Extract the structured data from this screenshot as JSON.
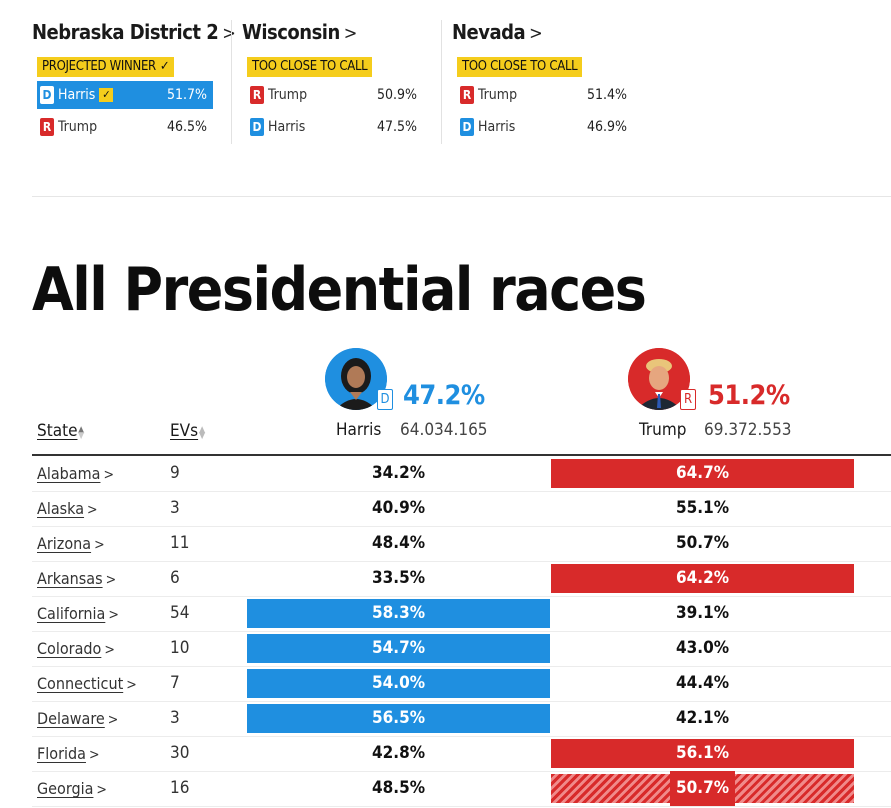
{
  "featured": [
    {
      "title": "Nebraska District 2",
      "status": "PROJECTED WINNER",
      "status_check": "✓",
      "candidates": [
        {
          "party": "D",
          "name": "Harris",
          "pct": "51.7%",
          "winner": true
        },
        {
          "party": "R",
          "name": "Trump",
          "pct": "46.5%",
          "winner": false
        }
      ]
    },
    {
      "title": "Wisconsin",
      "status": "TOO CLOSE TO CALL",
      "candidates": [
        {
          "party": "R",
          "name": "Trump",
          "pct": "50.9%"
        },
        {
          "party": "D",
          "name": "Harris",
          "pct": "47.5%"
        }
      ]
    },
    {
      "title": "Nevada",
      "status": "TOO CLOSE TO CALL",
      "candidates": [
        {
          "party": "R",
          "name": "Trump",
          "pct": "51.4%"
        },
        {
          "party": "D",
          "name": "Harris",
          "pct": "46.9%"
        }
      ]
    }
  ],
  "section_title": "All Presidential races",
  "nominees": {
    "harris": {
      "party": "D",
      "pct": "47.2%",
      "name": "Harris",
      "votes": "64.034.165"
    },
    "trump": {
      "party": "R",
      "pct": "51.2%",
      "name": "Trump",
      "votes": "69.372.553"
    }
  },
  "table": {
    "headers": {
      "state": "State",
      "evs": "EVs"
    },
    "rows": [
      {
        "state": "Alabama",
        "evs": "9",
        "harris": "34.2%",
        "trump": "64.7%",
        "bar": "R"
      },
      {
        "state": "Alaska",
        "evs": "3",
        "harris": "40.9%",
        "trump": "55.1%",
        "bar": ""
      },
      {
        "state": "Arizona",
        "evs": "11",
        "harris": "48.4%",
        "trump": "50.7%",
        "bar": ""
      },
      {
        "state": "Arkansas",
        "evs": "6",
        "harris": "33.5%",
        "trump": "64.2%",
        "bar": "R"
      },
      {
        "state": "California",
        "evs": "54",
        "harris": "58.3%",
        "trump": "39.1%",
        "bar": "D"
      },
      {
        "state": "Colorado",
        "evs": "10",
        "harris": "54.7%",
        "trump": "43.0%",
        "bar": "D"
      },
      {
        "state": "Connecticut",
        "evs": "7",
        "harris": "54.0%",
        "trump": "44.4%",
        "bar": "D"
      },
      {
        "state": "Delaware",
        "evs": "3",
        "harris": "56.5%",
        "trump": "42.1%",
        "bar": "D"
      },
      {
        "state": "Florida",
        "evs": "30",
        "harris": "42.8%",
        "trump": "56.1%",
        "bar": "R"
      },
      {
        "state": "Georgia",
        "evs": "16",
        "harris": "48.5%",
        "trump": "50.7%",
        "bar": "R-lean"
      }
    ]
  },
  "colors": {
    "dem": "#1f8fe0",
    "rep": "#d82a2a",
    "status": "#f5cd1c"
  }
}
